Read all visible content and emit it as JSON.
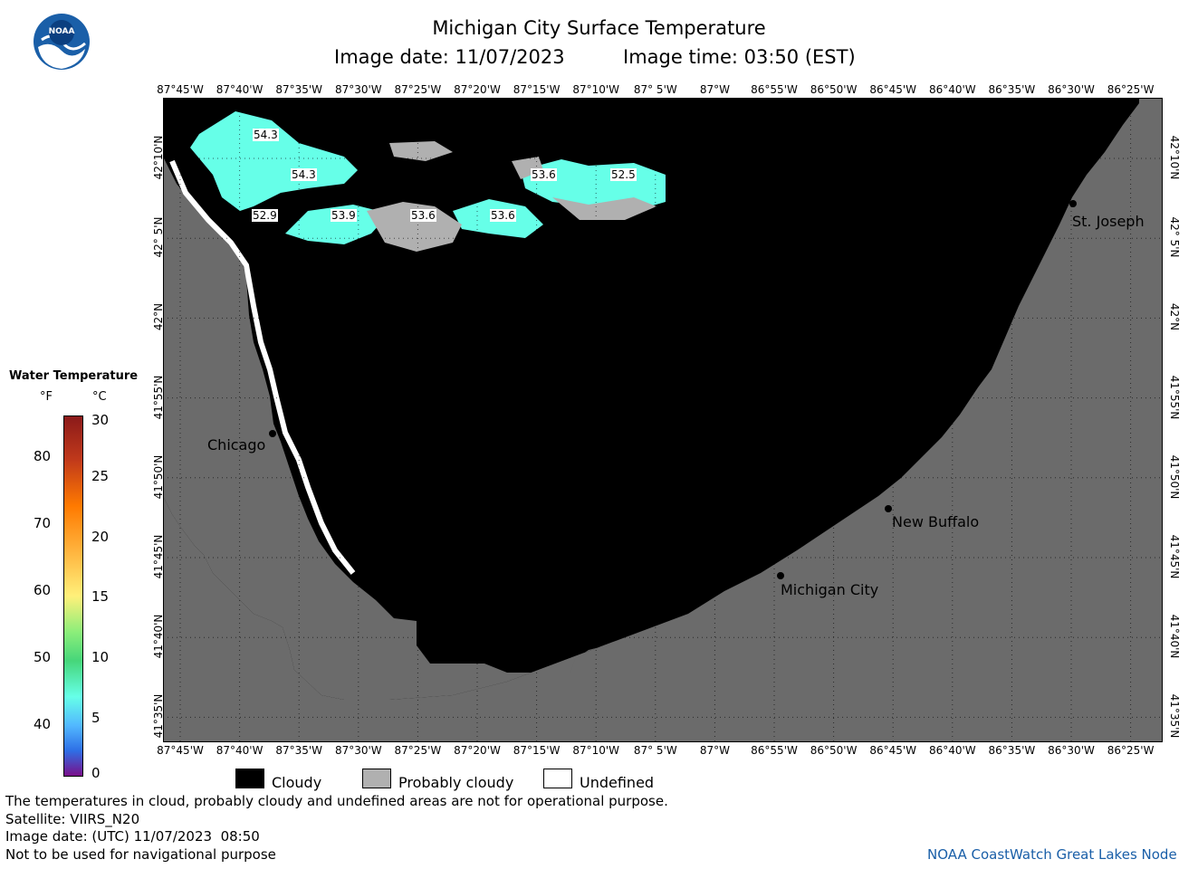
{
  "header": {
    "title": "Michigan City Surface Temperature",
    "image_date": "Image date: 11/07/2023",
    "image_time": "Image time: 03:50 (EST)"
  },
  "logo": {
    "text": "NOAA"
  },
  "map": {
    "lon_labels": [
      "87°45'W",
      "87°40'W",
      "87°35'W",
      "87°30'W",
      "87°25'W",
      "87°20'W",
      "87°15'W",
      "87°10'W",
      "87° 5'W",
      "87°W",
      "86°55'W",
      "86°50'W",
      "86°45'W",
      "86°40'W",
      "86°35'W",
      "86°30'W",
      "86°25'W"
    ],
    "lat_labels": [
      "42°10'N",
      "42° 5'N",
      "42°N",
      "41°55'N",
      "41°50'N",
      "41°45'N",
      "41°40'N",
      "41°35'N"
    ],
    "cities": {
      "chicago": "Chicago",
      "michigan_city": "Michigan City",
      "new_buffalo": "New Buffalo",
      "st_joseph": "St. Joseph"
    },
    "contour_labels": [
      "54.3",
      "54.3",
      "52.9",
      "53.9",
      "53.6",
      "53.6",
      "53.6",
      "52.5"
    ],
    "colors": {
      "cloud": "#000000",
      "land": "#6b6b6b",
      "probably_cloudy": "#b0b0b0",
      "water_cyan": "#66ffe8",
      "undefined": "#ffffff"
    }
  },
  "temperature_legend": {
    "title": "Water Temperature",
    "unit_f": "°F",
    "unit_c": "°C",
    "f_ticks": [
      "80",
      "70",
      "60",
      "50",
      "40"
    ],
    "c_ticks": [
      "30",
      "25",
      "20",
      "15",
      "10",
      "5",
      "0"
    ]
  },
  "mask_legend": {
    "cloudy": "Cloudy",
    "probably_cloudy": "Probably cloudy",
    "undefined": "Undefined"
  },
  "footer": {
    "disclaimer": "The temperatures in cloud, probably cloudy and undefined areas are not for operational purpose.",
    "satellite": "Satellite: VIIRS_N20",
    "utc_date": "Image date: (UTC) 11/07/2023  08:50",
    "navigation": "Not to be used for navigational purpose",
    "credit": "NOAA CoastWatch Great Lakes Node"
  }
}
